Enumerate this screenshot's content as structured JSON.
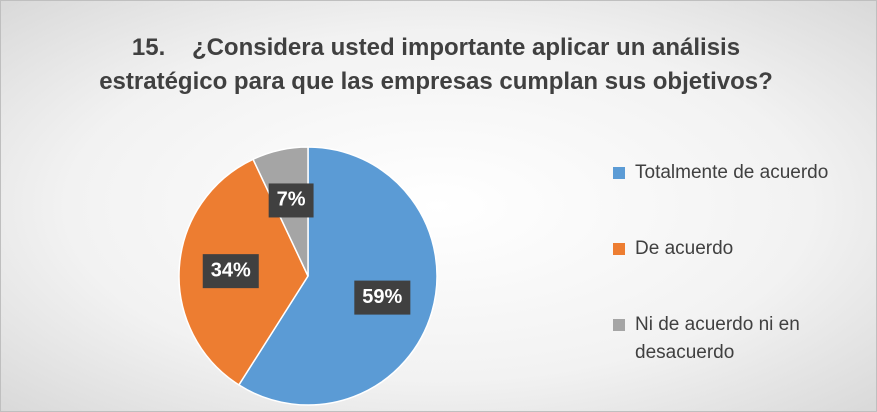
{
  "chart_data": {
    "type": "pie",
    "title": "15.    ¿Considera usted importante aplicar un análisis estratégico para que las empresas cumplan sus objetivos?",
    "categories": [
      "Totalmente de acuerdo",
      "De acuerdo",
      "Ni de acuerdo ni en desacuerdo"
    ],
    "values": [
      59,
      34,
      7
    ],
    "value_labels": [
      "59%",
      "34%",
      "7%"
    ],
    "colors": [
      "#5b9bd5",
      "#ed7d31",
      "#a5a5a5"
    ],
    "legend": "right"
  }
}
